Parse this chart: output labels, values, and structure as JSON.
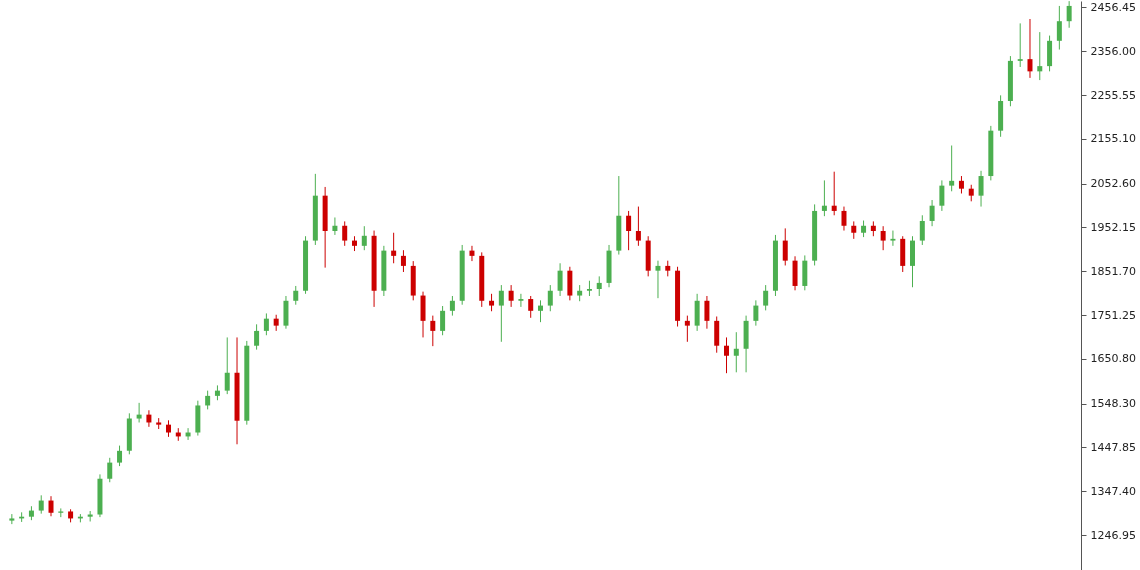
{
  "chart_data": {
    "type": "candlestick",
    "categories": [
      null,
      null,
      null,
      null,
      null,
      null,
      null,
      null,
      null,
      null,
      null,
      null,
      null,
      null,
      null,
      null,
      null,
      null,
      null,
      null,
      null,
      null,
      null,
      null,
      null,
      null,
      null,
      null,
      null,
      null,
      null,
      null,
      null,
      null,
      null,
      null,
      null,
      null,
      null,
      null,
      null,
      null,
      null,
      null,
      null,
      null,
      null,
      null,
      null,
      null,
      null,
      null,
      null,
      null,
      null,
      null,
      null,
      null,
      null,
      null,
      null,
      null,
      null,
      null,
      null,
      null,
      null,
      null,
      null,
      null,
      null,
      null,
      null,
      null,
      null,
      null,
      null,
      null,
      null,
      null,
      null,
      null,
      null,
      null,
      null,
      null,
      null,
      null,
      null,
      null,
      null,
      null,
      null,
      null,
      null,
      null,
      null,
      null,
      null,
      null,
      null,
      null,
      null,
      null,
      null,
      null,
      null,
      null,
      null
    ],
    "ohlc": [
      [
        1280,
        1295,
        1272,
        1285
      ],
      [
        1285,
        1299,
        1277,
        1289
      ],
      [
        1289,
        1313,
        1281,
        1303
      ],
      [
        1303,
        1338,
        1296,
        1326
      ],
      [
        1326,
        1336,
        1290,
        1298
      ],
      [
        1298,
        1308,
        1288,
        1301
      ],
      [
        1301,
        1306,
        1276,
        1285
      ],
      [
        1285,
        1295,
        1276,
        1289
      ],
      [
        1289,
        1302,
        1278,
        1294
      ],
      [
        1294,
        1386,
        1288,
        1376
      ],
      [
        1376,
        1424,
        1368,
        1413
      ],
      [
        1413,
        1452,
        1405,
        1440
      ],
      [
        1440,
        1526,
        1432,
        1514
      ],
      [
        1514,
        1550,
        1505,
        1523
      ],
      [
        1523,
        1533,
        1495,
        1505
      ],
      [
        1505,
        1515,
        1490,
        1500
      ],
      [
        1500,
        1510,
        1472,
        1482
      ],
      [
        1482,
        1492,
        1463,
        1473
      ],
      [
        1473,
        1492,
        1465,
        1482
      ],
      [
        1482,
        1555,
        1475,
        1544
      ],
      [
        1544,
        1578,
        1535,
        1566
      ],
      [
        1566,
        1590,
        1556,
        1578
      ],
      [
        1578,
        1700,
        1570,
        1619
      ],
      [
        1619,
        1700,
        1455,
        1509
      ],
      [
        1509,
        1692,
        1500,
        1681
      ],
      [
        1681,
        1730,
        1672,
        1715
      ],
      [
        1715,
        1755,
        1705,
        1743
      ],
      [
        1743,
        1752,
        1715,
        1727
      ],
      [
        1727,
        1795,
        1720,
        1784
      ],
      [
        1784,
        1818,
        1775,
        1807
      ],
      [
        1807,
        1932,
        1800,
        1922
      ],
      [
        1922,
        2075,
        1912,
        2025
      ],
      [
        2025,
        2045,
        1860,
        1944
      ],
      [
        1944,
        1975,
        1935,
        1956
      ],
      [
        1956,
        1966,
        1910,
        1922
      ],
      [
        1922,
        1932,
        1898,
        1910
      ],
      [
        1910,
        1955,
        1900,
        1933
      ],
      [
        1933,
        1945,
        1770,
        1807
      ],
      [
        1807,
        1910,
        1795,
        1899
      ],
      [
        1899,
        1940,
        1870,
        1887
      ],
      [
        1887,
        1900,
        1850,
        1864
      ],
      [
        1864,
        1875,
        1785,
        1796
      ],
      [
        1796,
        1805,
        1700,
        1738
      ],
      [
        1738,
        1750,
        1680,
        1715
      ],
      [
        1715,
        1772,
        1705,
        1761
      ],
      [
        1761,
        1795,
        1750,
        1784
      ],
      [
        1784,
        1912,
        1775,
        1899
      ],
      [
        1899,
        1910,
        1875,
        1887
      ],
      [
        1887,
        1895,
        1770,
        1784
      ],
      [
        1784,
        1800,
        1760,
        1773
      ],
      [
        1773,
        1820,
        1690,
        1807
      ],
      [
        1807,
        1820,
        1770,
        1784
      ],
      [
        1784,
        1800,
        1770,
        1788
      ],
      [
        1788,
        1795,
        1745,
        1761
      ],
      [
        1761,
        1785,
        1735,
        1773
      ],
      [
        1773,
        1820,
        1760,
        1807
      ],
      [
        1807,
        1870,
        1795,
        1853
      ],
      [
        1853,
        1862,
        1785,
        1796
      ],
      [
        1796,
        1820,
        1783,
        1807
      ],
      [
        1807,
        1830,
        1795,
        1811
      ],
      [
        1811,
        1840,
        1795,
        1825
      ],
      [
        1825,
        1912,
        1815,
        1899
      ],
      [
        1899,
        2070,
        1890,
        1979
      ],
      [
        1979,
        1990,
        1900,
        1944
      ],
      [
        1944,
        2000,
        1910,
        1922
      ],
      [
        1922,
        1932,
        1840,
        1853
      ],
      [
        1853,
        1876,
        1790,
        1864
      ],
      [
        1864,
        1876,
        1840,
        1853
      ],
      [
        1853,
        1862,
        1725,
        1738
      ],
      [
        1738,
        1750,
        1690,
        1727
      ],
      [
        1727,
        1800,
        1715,
        1784
      ],
      [
        1784,
        1795,
        1720,
        1738
      ],
      [
        1738,
        1748,
        1665,
        1681
      ],
      [
        1681,
        1700,
        1618,
        1658
      ],
      [
        1658,
        1712,
        1620,
        1674
      ],
      [
        1674,
        1750,
        1620,
        1738
      ],
      [
        1738,
        1785,
        1727,
        1773
      ],
      [
        1773,
        1820,
        1762,
        1807
      ],
      [
        1807,
        1935,
        1795,
        1922
      ],
      [
        1922,
        1950,
        1865,
        1876
      ],
      [
        1876,
        1886,
        1808,
        1818
      ],
      [
        1818,
        1888,
        1808,
        1876
      ],
      [
        1876,
        2005,
        1865,
        1990
      ],
      [
        1990,
        2060,
        1978,
        2002
      ],
      [
        2002,
        2080,
        1980,
        1990
      ],
      [
        1990,
        2000,
        1945,
        1956
      ],
      [
        1956,
        1966,
        1926,
        1940
      ],
      [
        1940,
        1968,
        1930,
        1956
      ],
      [
        1956,
        1966,
        1932,
        1944
      ],
      [
        1944,
        1955,
        1900,
        1922
      ],
      [
        1922,
        1945,
        1910,
        1926
      ],
      [
        1926,
        1932,
        1850,
        1864
      ],
      [
        1864,
        1932,
        1815,
        1922
      ],
      [
        1922,
        1980,
        1912,
        1967
      ],
      [
        1967,
        2015,
        1955,
        2002
      ],
      [
        2002,
        2060,
        1990,
        2048
      ],
      [
        2048,
        2140,
        2035,
        2059
      ],
      [
        2059,
        2070,
        2030,
        2041
      ],
      [
        2041,
        2050,
        2012,
        2025
      ],
      [
        2025,
        2082,
        2000,
        2070
      ],
      [
        2070,
        2185,
        2060,
        2174
      ],
      [
        2174,
        2255,
        2160,
        2242
      ],
      [
        2242,
        2345,
        2230,
        2334
      ],
      [
        2334,
        2420,
        2320,
        2338
      ],
      [
        2338,
        2430,
        2295,
        2310
      ],
      [
        2310,
        2400,
        2290,
        2322
      ],
      [
        2322,
        2392,
        2310,
        2380
      ],
      [
        2380,
        2460,
        2360,
        2425
      ],
      [
        2425,
        2471,
        2410,
        2460
      ]
    ],
    "colors": [
      "#4caf50",
      "#4caf50",
      "#4caf50",
      "#4caf50",
      "#cc0000",
      "#4caf50",
      "#cc0000",
      "#4caf50",
      "#4caf50",
      "#4caf50",
      "#4caf50",
      "#4caf50",
      "#4caf50",
      "#4caf50",
      "#cc0000",
      "#cc0000",
      "#cc0000",
      "#cc0000",
      "#4caf50",
      "#4caf50",
      "#4caf50",
      "#4caf50",
      "#4caf50",
      "#cc0000",
      "#4caf50",
      "#4caf50",
      "#4caf50",
      "#cc0000",
      "#4caf50",
      "#4caf50",
      "#4caf50",
      "#4caf50",
      "#cc0000",
      "#4caf50",
      "#cc0000",
      "#cc0000",
      "#4caf50",
      "#cc0000",
      "#4caf50",
      "#cc0000",
      "#cc0000",
      "#cc0000",
      "#cc0000",
      "#cc0000",
      "#4caf50",
      "#4caf50",
      "#4caf50",
      "#cc0000",
      "#cc0000",
      "#cc0000",
      "#4caf50",
      "#cc0000",
      "#4caf50",
      "#cc0000",
      "#4caf50",
      "#4caf50",
      "#4caf50",
      "#cc0000",
      "#4caf50",
      "#4caf50",
      "#4caf50",
      "#4caf50",
      "#4caf50",
      "#cc0000",
      "#cc0000",
      "#cc0000",
      "#4caf50",
      "#cc0000",
      "#cc0000",
      "#cc0000",
      "#4caf50",
      "#cc0000",
      "#cc0000",
      "#cc0000",
      "#4caf50",
      "#4caf50",
      "#4caf50",
      "#4caf50",
      "#4caf50",
      "#cc0000",
      "#cc0000",
      "#4caf50",
      "#4caf50",
      "#4caf50",
      "#cc0000",
      "#cc0000",
      "#cc0000",
      "#4caf50",
      "#cc0000",
      "#cc0000",
      "#4caf50",
      "#cc0000",
      "#4caf50",
      "#4caf50",
      "#4caf50",
      "#4caf50",
      "#4caf50",
      "#cc0000",
      "#cc0000",
      "#4caf50",
      "#4caf50",
      "#4caf50",
      "#4caf50",
      "#4caf50",
      "#cc0000",
      "#4caf50",
      "#4caf50",
      "#4caf50",
      "#4caf50"
    ],
    "ylim": [
      1164.5,
      2471.3
    ],
    "yticks": [
      {
        "value": 2456.45,
        "label": "2456.45"
      },
      {
        "value": 2356,
        "label": "2356.00"
      },
      {
        "value": 2255.55,
        "label": "2255.55"
      },
      {
        "value": 2155.1,
        "label": "2155.10"
      },
      {
        "value": 2052.6,
        "label": "2052.60"
      },
      {
        "value": 1952.15,
        "label": "1952.15"
      },
      {
        "value": 1851.7,
        "label": "1851.70"
      },
      {
        "value": 1751.25,
        "label": "1751.25"
      },
      {
        "value": 1650.8,
        "label": "1650.80"
      },
      {
        "value": 1548.3,
        "label": "1548.30"
      },
      {
        "value": 1447.85,
        "label": "1447.85"
      },
      {
        "value": 1347.4,
        "label": "1347.40"
      },
      {
        "value": 1246.95,
        "label": "1246.95"
      }
    ],
    "grid": false,
    "tick_labels": "y"
  }
}
